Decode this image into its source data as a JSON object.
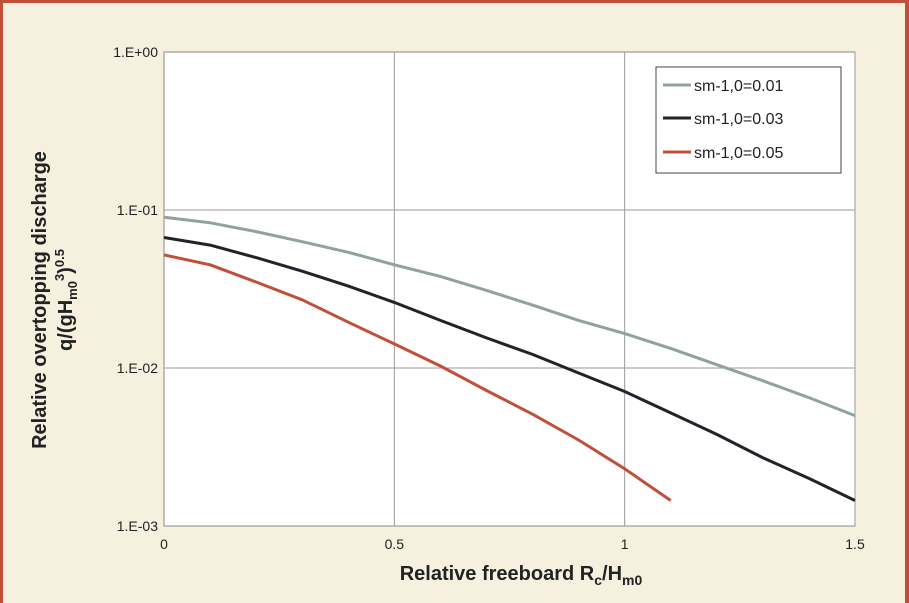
{
  "chart_data": {
    "type": "line",
    "x_axis": {
      "label_main": "Relative freeboard R",
      "label_sub1": "c",
      "label_mid": "/H",
      "label_sub2": "m0",
      "range": [
        0,
        1.5
      ],
      "ticks": [
        0,
        0.5,
        1,
        1.5
      ],
      "tick_labels": [
        "0",
        "0.5",
        "1",
        "1.5"
      ]
    },
    "y_axis": {
      "scale": "log",
      "range": [
        0.001,
        1
      ],
      "ticks": [
        0.001,
        0.01,
        0.1,
        1
      ],
      "tick_labels": [
        "1.E-03",
        "1.E-02",
        "1.E-01",
        "1.E+00"
      ],
      "label_line1": "Relative overtopping discharge",
      "label_line2_q": "q/(gH",
      "label_line2_sub": "m0",
      "label_line2_exp3": "3",
      "label_line2_close": ")",
      "label_line2_exp": "0.5"
    },
    "grid": true,
    "legend_position": "top-right",
    "series": [
      {
        "name": "sm-1,0=0.01",
        "color": "#8fa39b",
        "x": [
          0,
          0.1,
          0.2,
          0.3,
          0.4,
          0.5,
          0.6,
          0.7,
          0.8,
          0.9,
          1.0,
          1.1,
          1.2,
          1.3,
          1.4,
          1.5
        ],
        "y": [
          0.09,
          0.083,
          0.073,
          0.063,
          0.054,
          0.045,
          0.038,
          0.031,
          0.025,
          0.02,
          0.0165,
          0.0133,
          0.0105,
          0.0083,
          0.0065,
          0.005
        ]
      },
      {
        "name": "sm-1,0=0.03",
        "color": "#22222a",
        "x": [
          0,
          0.1,
          0.2,
          0.3,
          0.4,
          0.5,
          0.6,
          0.7,
          0.8,
          0.9,
          1.0,
          1.1,
          1.2,
          1.3,
          1.4,
          1.5
        ],
        "y": [
          0.067,
          0.06,
          0.05,
          0.041,
          0.033,
          0.026,
          0.02,
          0.0155,
          0.0122,
          0.0093,
          0.0071,
          0.0052,
          0.0038,
          0.0027,
          0.002,
          0.00145
        ]
      },
      {
        "name": "sm-1,0=0.05",
        "color": "#c0503a",
        "x": [
          0,
          0.1,
          0.2,
          0.3,
          0.4,
          0.5,
          0.6,
          0.7,
          0.8,
          0.9,
          1.0,
          1.1
        ],
        "y": [
          0.052,
          0.045,
          0.035,
          0.027,
          0.0195,
          0.0142,
          0.0103,
          0.0072,
          0.0051,
          0.0035,
          0.0023,
          0.00145
        ]
      }
    ]
  }
}
